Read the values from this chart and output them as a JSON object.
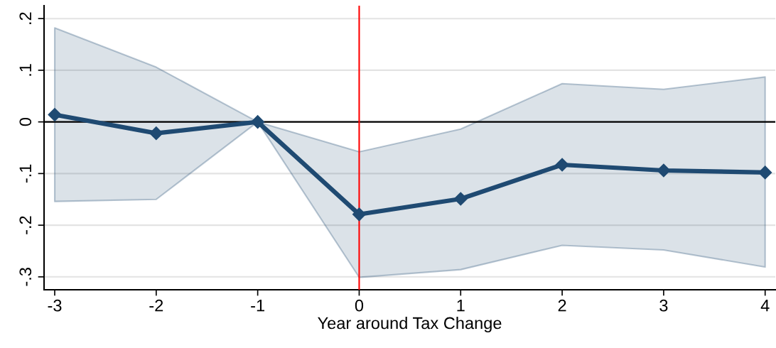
{
  "chart_data": {
    "type": "line",
    "xlabel": "Year around Tax Change",
    "x": [
      -3,
      -2,
      -1,
      0,
      1,
      2,
      3,
      4
    ],
    "series": [
      {
        "color": "#1f4a72",
        "values": [
          0.014,
          -0.022,
          0,
          -0.179,
          -0.149,
          -0.083,
          -0.094,
          -0.098
        ],
        "lower": [
          -0.154,
          -0.15,
          0,
          -0.301,
          -0.286,
          -0.239,
          -0.248,
          -0.281
        ],
        "upper": [
          0.182,
          0.106,
          0,
          -0.058,
          -0.014,
          0.074,
          0.063,
          0.087
        ]
      }
    ],
    "xlim": [
      -3.105,
      4.1
    ],
    "ylim": [
      -0.325,
      0.225
    ],
    "xticks": [
      -3,
      -2,
      -1,
      0,
      1,
      2,
      3,
      4
    ],
    "yticks": [
      {
        "value": -0.3,
        "label": "-.3"
      },
      {
        "value": -0.2,
        "label": "-.2"
      },
      {
        "value": -0.1,
        "label": "-.1"
      },
      0,
      {
        "value": 0.1,
        "label": ".1"
      },
      {
        "value": 0.2,
        "label": ".2"
      }
    ],
    "ref_lines": [
      {
        "axis": "y",
        "value": 0,
        "color": "#000000"
      },
      {
        "axis": "x",
        "value": 0,
        "color": "#ff0000"
      }
    ],
    "grid": "y",
    "marker": "diamond",
    "line_style": "solid",
    "legend": false
  }
}
